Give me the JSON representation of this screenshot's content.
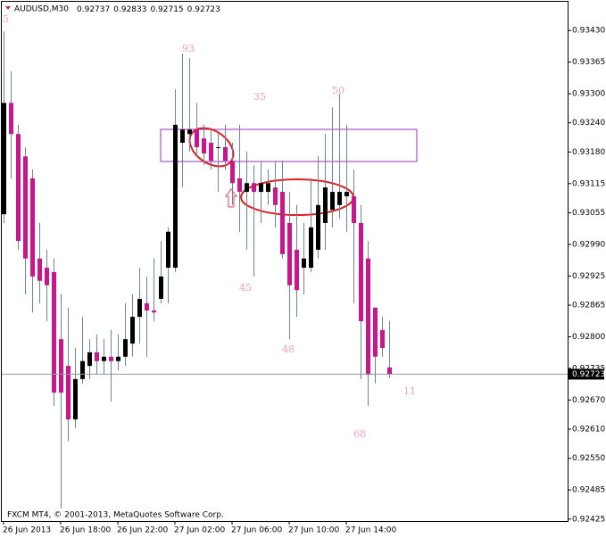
{
  "chart_data": {
    "type": "candlestick",
    "title": "AUDUSD,M30",
    "footer": "FXCM MT4, © 2001-2013, MetaQuotes Software Corp.",
    "categories": [
      "26 Jun 2013",
      null,
      null,
      null,
      null,
      null,
      null,
      null,
      "26 Jun 18:00",
      null,
      null,
      null,
      null,
      null,
      null,
      null,
      "26 Jun 22:00",
      null,
      null,
      null,
      null,
      null,
      null,
      null,
      "27 Jun 02:00",
      null,
      null,
      null,
      null,
      null,
      null,
      null,
      "27 Jun 06:00",
      null,
      null,
      null,
      null,
      null,
      null,
      null,
      "27 Jun 10:00",
      null,
      null,
      null,
      null,
      null,
      null,
      null,
      "27 Jun 14:00",
      null,
      null,
      null,
      null,
      null,
      null
    ],
    "open": [
      0.93052,
      0.93281,
      0.93217,
      0.93171,
      0.93126,
      0.92961,
      0.92942,
      0.92933,
      0.92795,
      0.9274,
      0.9263,
      0.92713,
      0.9274,
      0.92768,
      0.9275,
      0.92759,
      0.9275,
      0.92759,
      0.92786,
      0.92841,
      0.92869,
      0.92854,
      0.92878,
      0.92942,
      0.92942,
      0.93199,
      0.93217,
      0.93226,
      0.93208,
      0.93199,
      0.9319,
      0.9319,
      0.93162,
      0.93126,
      0.93098,
      0.93116,
      0.93098,
      0.93098,
      0.93107,
      0.93098,
      0.93034,
      0.92979,
      0.92942,
      0.92942,
      0.92979,
      0.93034,
      0.93061,
      0.93071,
      0.93089,
      0.93089,
      0.93034,
      0.92961,
      0.9286,
      0.92814,
      0.92737
    ],
    "high": [
      0.93428,
      0.93346,
      0.93236,
      0.9319,
      0.93144,
      0.93034,
      0.92979,
      0.92961,
      0.92887,
      0.9286,
      0.92777,
      0.92841,
      0.92795,
      0.92805,
      0.92795,
      0.92814,
      0.92805,
      0.92869,
      0.92887,
      0.92942,
      0.92924,
      0.92961,
      0.92997,
      0.93025,
      0.93309,
      0.93382,
      0.93373,
      0.93281,
      0.93236,
      0.93226,
      0.93217,
      0.93236,
      0.93199,
      0.93236,
      0.93181,
      0.93153,
      0.93162,
      0.93144,
      0.93162,
      0.93162,
      0.93098,
      0.93071,
      0.93034,
      0.93126,
      0.93171,
      0.93217,
      0.93272,
      0.933,
      0.93236,
      0.93144,
      0.93071,
      0.92997,
      0.9286,
      0.92841,
      0.92833
    ],
    "low": [
      0.93034,
      0.93126,
      0.92979,
      0.92887,
      0.9285,
      0.92869,
      0.92832,
      0.92658,
      0.92447,
      0.92585,
      0.92612,
      0.92704,
      0.92713,
      0.92722,
      0.92722,
      0.92667,
      0.92731,
      0.9274,
      0.92759,
      0.92786,
      0.92759,
      0.92832,
      0.92869,
      0.92869,
      0.92933,
      0.93107,
      0.93181,
      0.93171,
      0.93153,
      0.93144,
      0.93098,
      0.93144,
      0.93071,
      0.93016,
      0.92979,
      0.92924,
      0.93034,
      0.93071,
      0.93025,
      0.92961,
      0.92795,
      0.92841,
      0.92887,
      0.92933,
      0.92961,
      0.92979,
      0.93025,
      0.93043,
      0.93016,
      0.92869,
      0.92713,
      0.92658,
      0.92704,
      0.92759,
      0.92715
    ],
    "close": [
      0.93281,
      0.93217,
      0.92997,
      0.92961,
      0.92924,
      0.92915,
      0.92906,
      0.92685,
      0.92685,
      0.9263,
      0.92713,
      0.9275,
      0.92768,
      0.9275,
      0.92759,
      0.9275,
      0.92759,
      0.92795,
      0.92841,
      0.92878,
      0.92854,
      0.9285,
      0.92924,
      0.93016,
      0.93236,
      0.93226,
      0.93226,
      0.9319,
      0.93177,
      0.93162,
      0.9319,
      0.93162,
      0.93116,
      0.93098,
      0.93116,
      0.93098,
      0.93116,
      0.93116,
      0.93071,
      0.9297,
      0.92906,
      0.92896,
      0.92961,
      0.93025,
      0.93071,
      0.93107,
      0.93098,
      0.93098,
      0.93098,
      0.93034,
      0.92832,
      0.92722,
      0.92759,
      0.92777,
      0.92723
    ],
    "up_color": "#000000",
    "down_color": "#c8168c",
    "wick_color": "#6d8298",
    "ylim": [
      0.92421,
      0.93489
    ],
    "yticks": [
      {
        "value": 0.9343,
        "label": "0.93430"
      },
      0.93365,
      {
        "value": 0.933,
        "label": "0.93300"
      },
      {
        "value": 0.9324,
        "label": "0.93240"
      },
      {
        "value": 0.9318,
        "label": "0.93180"
      },
      0.93115,
      0.93055,
      {
        "value": 0.9299,
        "label": "0.92990"
      },
      0.92925,
      0.92865,
      {
        "value": 0.928,
        "label": "0.92800"
      },
      0.92735,
      {
        "value": 0.9267,
        "label": "0.92670"
      },
      {
        "value": 0.9261,
        "label": "0.92610"
      },
      {
        "value": 0.9255,
        "label": "0.92550"
      },
      0.92485,
      0.92425
    ],
    "annotations": [
      "5",
      "93",
      "35",
      "50",
      "45",
      "48",
      "68",
      "11"
    ],
    "annotation_color": "#f0a0b8"
  }
}
